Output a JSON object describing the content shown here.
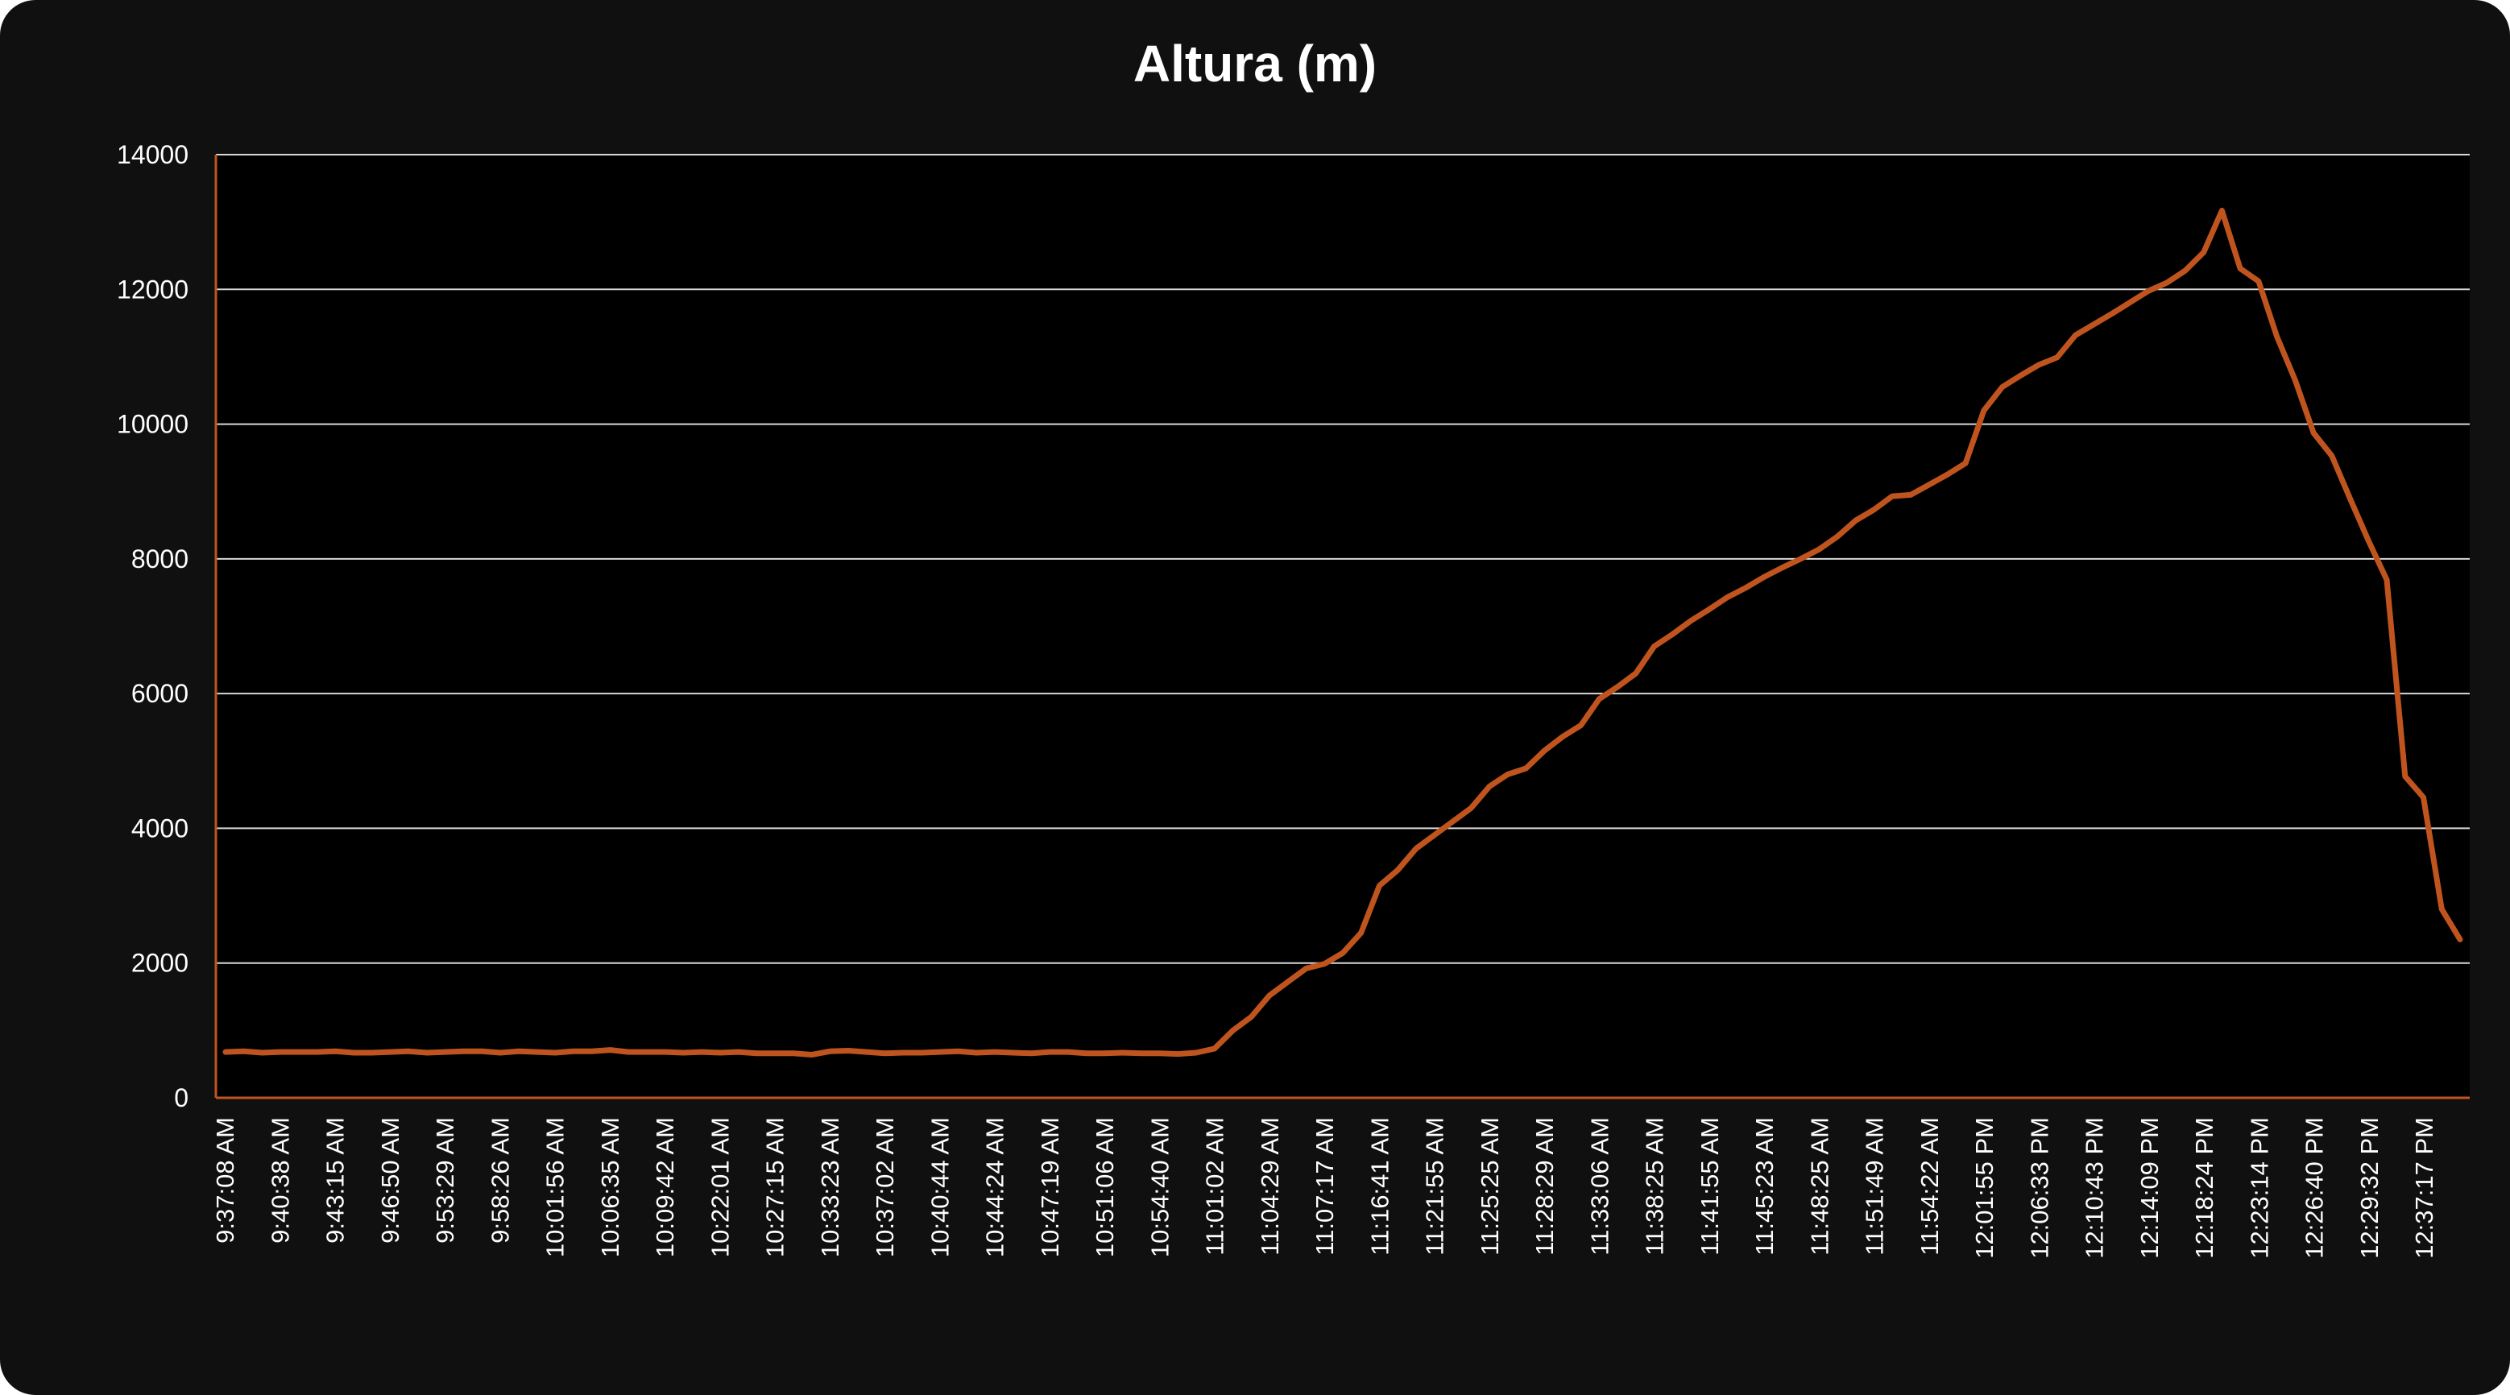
{
  "chart_data": {
    "type": "line",
    "title": "Altura (m)",
    "xlabel": "",
    "ylabel": "",
    "ylim": [
      0,
      14000
    ],
    "yticks": [
      0,
      2000,
      4000,
      6000,
      8000,
      10000,
      12000,
      14000
    ],
    "grid": true,
    "legend": "none",
    "colors": {
      "background": "#000000",
      "frame": "#101010",
      "line": "#C0541E",
      "grid": "#d8d8d8",
      "text": "#ffffff"
    },
    "x_tick_labels": [
      "9:37:08 AM",
      "9:40:38 AM",
      "9:43:15 AM",
      "9:46:50 AM",
      "9:53:29 AM",
      "9:58:26 AM",
      "10:01:56 AM",
      "10:06:35 AM",
      "10:09:42 AM",
      "10:22:01 AM",
      "10:27:15 AM",
      "10:33:23 AM",
      "10:37:02 AM",
      "10:40:44 AM",
      "10:44:24 AM",
      "10:47:19 AM",
      "10:51:06 AM",
      "10:54:40 AM",
      "11:01:02 AM",
      "11:04:29 AM",
      "11:07:17 AM",
      "11:16:41 AM",
      "11:21:55 AM",
      "11:25:25 AM",
      "11:28:29 AM",
      "11:33:06 AM",
      "11:38:25 AM",
      "11:41:55 AM",
      "11:45:23 AM",
      "11:48:25 AM",
      "11:51:49 AM",
      "11:54:22 AM",
      "12:01:55 PM",
      "12:06:33 PM",
      "12:10:43 PM",
      "12:14:09 PM",
      "12:18:24 PM",
      "12:23:14 PM",
      "12:26:40 PM",
      "12:29:32 PM",
      "12:37:17 PM"
    ],
    "series": [
      {
        "values": [
          680,
          690,
          670,
          680,
          680,
          680,
          690,
          670,
          670,
          680,
          690,
          670,
          680,
          690,
          690,
          670,
          690,
          680,
          670,
          690,
          690,
          710,
          680,
          680,
          680,
          670,
          680,
          670,
          680,
          660,
          660,
          660,
          640,
          690,
          700,
          680,
          660,
          670,
          670,
          680,
          690,
          670,
          680,
          670,
          660,
          680,
          680,
          660,
          660,
          670,
          660,
          660,
          650,
          670,
          730,
          1000,
          1200,
          1520,
          1720,
          1920,
          1990,
          2150,
          2450,
          3150,
          3380,
          3700,
          3900,
          4100,
          4300,
          4620,
          4800,
          4890,
          5150,
          5360,
          5530,
          5920,
          6100,
          6300,
          6700,
          6880,
          7080,
          7250,
          7430,
          7570,
          7730,
          7870,
          8000,
          8140,
          8330,
          8570,
          8730,
          8930,
          8950,
          9100,
          9250,
          9420,
          10200,
          10550,
          10720,
          10880,
          10990,
          11320,
          11480,
          11640,
          11810,
          11980,
          12100,
          12280,
          12550,
          13170,
          12310,
          12120,
          11300,
          10650,
          9870,
          9530,
          8890,
          8270,
          7690,
          4770,
          4460,
          2800,
          2350
        ]
      }
    ]
  }
}
